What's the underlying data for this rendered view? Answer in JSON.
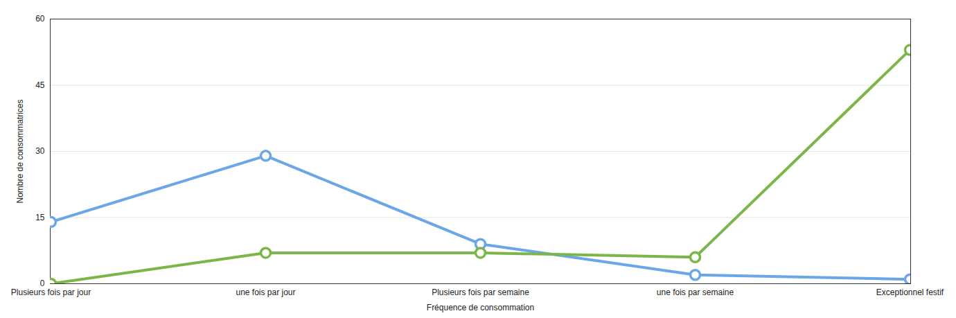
{
  "chart_data": {
    "type": "line",
    "x_label": "Fréquence de consommation",
    "y_label": "Nombre de consommatrices",
    "categories": [
      "Plusieurs fois par jour",
      "une fois par jour",
      "Plusieurs fois par semaine",
      "une fois par semaine",
      "Exceptionnel festif"
    ],
    "series": [
      {
        "color": "#6aa6e8",
        "marker": "circle",
        "line_style": "solid",
        "values": [
          14,
          29,
          9,
          2,
          1
        ]
      },
      {
        "color": "#7ab648",
        "marker": "circle",
        "line_style": "solid",
        "values": [
          0,
          7,
          7,
          6,
          53
        ]
      }
    ],
    "ylim": [
      0,
      60
    ],
    "yticks": [
      0,
      15,
      30,
      45,
      60
    ],
    "grid": true
  }
}
